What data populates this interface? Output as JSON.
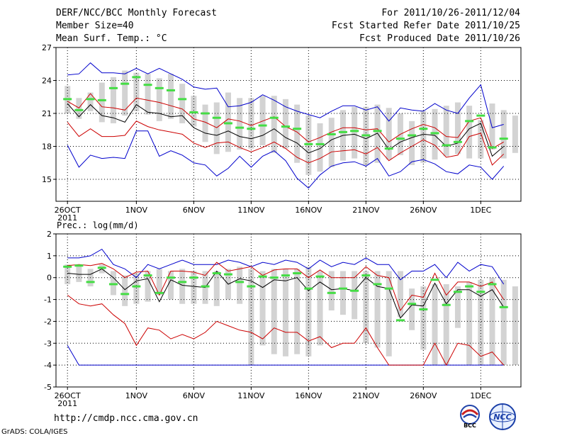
{
  "header": {
    "title": "DERF/NCC/BCC Monthly Forecast",
    "member_size": "Member Size=40",
    "variable_label": "Mean Surf. Temp.: °C",
    "forecast_range": "For 2011/10/26-2011/12/04",
    "started_date": "Fcst Started Refer Date 2011/10/25",
    "produced_date": "Fcst Produced Date 2011/10/26"
  },
  "footer": {
    "url": "http://cmdp.ncc.cma.gov.cn",
    "grads_credit": "GrADS: COLA/IGES",
    "logo_bcc": "BCC",
    "logo_ncc": "NCC"
  },
  "colors": {
    "box": "#d3d3d3",
    "median": "#44dd44",
    "mean": "#000000",
    "sd": "#cc0000",
    "range": "#0000cc",
    "grid": "#000000"
  },
  "chart_data": [
    {
      "type": "box-ensemble",
      "title": "Mean Surf. Temp.: °C",
      "ylabel": "°C",
      "ylim": [
        13,
        27
      ],
      "yticks": [
        15,
        18,
        21,
        24,
        27
      ],
      "x_days": 40,
      "xticks": [
        {
          "day": 1,
          "label": "26OCT",
          "sub": "2011"
        },
        {
          "day": 7,
          "label": "1NOV"
        },
        {
          "day": 12,
          "label": "6NOV"
        },
        {
          "day": 17,
          "label": "11NOV"
        },
        {
          "day": 22,
          "label": "16NOV"
        },
        {
          "day": 27,
          "label": "21NOV"
        },
        {
          "day": 32,
          "label": "26NOV"
        },
        {
          "day": 37,
          "label": "1DEC"
        }
      ],
      "box_low": [
        21.0,
        20.5,
        21.2,
        20.2,
        20.1,
        20.8,
        21.2,
        20.9,
        20.3,
        20.5,
        20.1,
        19.8,
        18.4,
        17.3,
        17.5,
        17.7,
        17.8,
        18.1,
        17.4,
        17.8,
        16.5,
        15.4,
        15.7,
        16.1,
        16.7,
        16.9,
        16.3,
        16.5,
        16.8,
        17.2,
        16.3,
        16.5,
        16.8,
        17.1,
        17.3,
        16.9,
        16.9,
        17.7,
        16.9,
        17.4
      ],
      "box_high": [
        23.5,
        22.4,
        22.9,
        23.8,
        24.3,
        24.9,
        24.7,
        24.6,
        24.2,
        24.6,
        23.7,
        22.6,
        21.8,
        22.0,
        22.9,
        22.4,
        22.4,
        22.6,
        22.6,
        22.3,
        21.8,
        20.8,
        20.1,
        20.6,
        21.3,
        21.6,
        21.6,
        21.8,
        21.5,
        21.0,
        20.3,
        21.2,
        21.4,
        21.7,
        22.0,
        21.7,
        20.4,
        21.9,
        21.3,
        20.8
      ],
      "median": [
        22.3,
        21.3,
        22.3,
        22.2,
        23.3,
        23.7,
        24.3,
        23.6,
        23.3,
        23.1,
        22.3,
        21.1,
        21.0,
        20.6,
        20.1,
        19.7,
        19.6,
        19.9,
        20.6,
        19.8,
        19.6,
        18.2,
        18.2,
        19.1,
        19.3,
        19.4,
        19.0,
        19.4,
        17.8,
        18.7,
        19.0,
        19.6,
        19.2,
        18.1,
        18.4,
        20.3,
        20.8,
        17.9,
        18.7,
        null
      ],
      "mean": [
        21.9,
        20.7,
        21.8,
        20.8,
        20.6,
        20.2,
        21.8,
        21.1,
        21.0,
        20.7,
        20.8,
        19.7,
        19.2,
        19.0,
        19.4,
        18.9,
        18.7,
        19.0,
        19.6,
        18.8,
        18.3,
        17.4,
        17.8,
        18.6,
        19.0,
        19.1,
        18.7,
        19.2,
        17.7,
        18.4,
        18.8,
        19.1,
        19.0,
        18.0,
        18.3,
        19.6,
        20.1,
        17.1,
        18.0,
        null
      ],
      "sd_upper": [
        22.1,
        21.5,
        22.8,
        21.6,
        21.5,
        21.3,
        22.4,
        22.2,
        22.0,
        21.7,
        21.4,
        20.5,
        20.2,
        19.7,
        20.5,
        20.3,
        19.9,
        20.3,
        20.7,
        19.8,
        19.3,
        18.4,
        18.8,
        19.3,
        19.7,
        19.7,
        19.5,
        19.6,
        18.4,
        19.1,
        19.6,
        20.0,
        19.7,
        18.9,
        18.8,
        20.3,
        20.6,
        17.8,
        18.4,
        null
      ],
      "sd_lower": [
        20.2,
        18.9,
        19.6,
        18.9,
        18.9,
        19.0,
        20.3,
        19.8,
        19.5,
        19.3,
        19.1,
        18.3,
        17.9,
        18.3,
        18.4,
        17.9,
        17.5,
        17.9,
        18.4,
        17.8,
        17.0,
        16.5,
        16.9,
        17.5,
        17.6,
        17.7,
        17.3,
        17.9,
        16.7,
        17.4,
        18.0,
        18.6,
        18.1,
        17.0,
        17.2,
        18.9,
        19.2,
        16.3,
        17.3,
        null
      ],
      "max": [
        24.5,
        24.6,
        25.6,
        24.7,
        24.7,
        24.6,
        25.1,
        24.6,
        25.1,
        24.6,
        24.1,
        23.4,
        23.2,
        23.3,
        21.6,
        21.7,
        22.0,
        22.7,
        22.2,
        21.6,
        21.2,
        20.9,
        20.6,
        21.2,
        21.7,
        21.7,
        21.3,
        21.6,
        20.3,
        21.5,
        21.3,
        21.2,
        21.9,
        21.3,
        21.0,
        22.4,
        23.6,
        19.7,
        20.0,
        null
      ],
      "min": [
        18.1,
        16.1,
        17.2,
        16.9,
        17.0,
        16.9,
        19.4,
        19.4,
        17.1,
        17.6,
        17.2,
        16.5,
        16.3,
        15.3,
        16.0,
        17.1,
        16.1,
        17.1,
        17.6,
        16.7,
        15.1,
        14.2,
        15.4,
        16.2,
        16.5,
        16.6,
        16.2,
        16.9,
        15.3,
        15.7,
        16.6,
        16.8,
        16.4,
        15.7,
        15.5,
        16.3,
        16.1,
        15.0,
        16.2,
        null
      ]
    },
    {
      "type": "box-ensemble",
      "title": "Prec.: log(mm/d)",
      "ylabel": "log(mm/d)",
      "ylim": [
        -5,
        2
      ],
      "yticks": [
        -5,
        -4,
        -3,
        -2,
        -1,
        0,
        1,
        2
      ],
      "x_days": 40,
      "xticks": [
        {
          "day": 1,
          "label": "26OCT",
          "sub": "2011"
        },
        {
          "day": 7,
          "label": "1NOV"
        },
        {
          "day": 12,
          "label": "6NOV"
        },
        {
          "day": 17,
          "label": "11NOV"
        },
        {
          "day": 22,
          "label": "16NOV"
        },
        {
          "day": 27,
          "label": "21NOV"
        },
        {
          "day": 32,
          "label": "26NOV"
        },
        {
          "day": 37,
          "label": "1DEC"
        }
      ],
      "box_low": [
        -0.3,
        -0.2,
        -0.4,
        0.2,
        -0.8,
        -1.3,
        -1.2,
        -1.1,
        -0.8,
        -1.0,
        -1.2,
        -1.2,
        -1.2,
        -1.3,
        -1.0,
        -1.2,
        -4.0,
        -3.1,
        -3.5,
        -3.6,
        -3.5,
        -3.6,
        -3.1,
        -1.5,
        -1.7,
        -1.9,
        -3.0,
        -3.2,
        -3.6,
        -1.8,
        -2.4,
        -3.3,
        -4.0,
        -4.0,
        -2.3,
        -4.0,
        -4.0,
        -4.0,
        -4.0,
        -4.0
      ],
      "box_high": [
        0.6,
        0.6,
        0.4,
        0.6,
        0.3,
        0.1,
        0.2,
        0.3,
        0.4,
        0.3,
        0.4,
        0.3,
        0.3,
        0.3,
        0.4,
        0.5,
        0.4,
        0.3,
        0.4,
        0.4,
        0.4,
        0.5,
        0.3,
        0.3,
        0.3,
        0.3,
        0.3,
        0.3,
        0.3,
        0.3,
        -0.5,
        -0.4,
        -0.3,
        -0.3,
        -0.4,
        -0.2,
        -0.1,
        0.0,
        -0.1,
        -0.4
      ],
      "median": [
        0.5,
        0.55,
        -0.2,
        0.45,
        -0.3,
        -0.75,
        -0.4,
        0.1,
        -0.7,
        0.0,
        -0.2,
        0.0,
        -0.4,
        0.2,
        0.15,
        -0.2,
        -0.4,
        0.05,
        0.0,
        0.1,
        0.2,
        -0.5,
        0.05,
        -0.7,
        -0.5,
        -0.6,
        0.1,
        -0.3,
        -0.5,
        -1.95,
        -1.2,
        -1.45,
        -0.1,
        -1.25,
        -0.65,
        -0.4,
        -0.65,
        -0.3,
        -1.35,
        null
      ],
      "mean": [
        0.2,
        0.15,
        0.15,
        0.4,
        0.0,
        -0.55,
        -0.15,
        -0.05,
        -1.1,
        -0.1,
        -0.35,
        -0.4,
        -0.45,
        0.3,
        -0.3,
        -0.05,
        -0.15,
        -0.45,
        -0.1,
        -0.15,
        0.0,
        -0.6,
        -0.2,
        -0.55,
        -0.5,
        -0.6,
        0.0,
        -0.4,
        -0.5,
        -1.85,
        -1.25,
        -1.3,
        -0.25,
        -1.2,
        -0.55,
        -0.55,
        -0.85,
        -0.55,
        -1.35,
        null
      ],
      "sd_upper": [
        0.55,
        0.6,
        0.55,
        0.65,
        0.4,
        0.0,
        0.25,
        0.3,
        -0.8,
        0.3,
        0.3,
        0.25,
        0.1,
        0.7,
        0.3,
        0.4,
        0.5,
        0.1,
        0.35,
        0.4,
        0.4,
        0.0,
        0.35,
        0.0,
        0.0,
        0.0,
        0.5,
        0.1,
        0.0,
        -1.5,
        -0.8,
        -0.9,
        0.2,
        -0.8,
        -0.2,
        -0.2,
        -0.4,
        -0.2,
        -1.0,
        null
      ],
      "sd_lower": [
        -0.8,
        -1.2,
        -1.3,
        -1.2,
        -1.7,
        -2.1,
        -3.1,
        -2.3,
        -2.4,
        -2.8,
        -2.6,
        -2.8,
        -2.5,
        -2.0,
        -2.2,
        -2.4,
        -2.5,
        -2.8,
        -2.3,
        -2.5,
        -2.5,
        -2.9,
        -2.7,
        -3.2,
        -3.0,
        -3.0,
        -2.3,
        -3.2,
        -4.0,
        -4.0,
        -4.0,
        -4.0,
        -3.0,
        -4.0,
        -3.0,
        -3.1,
        -3.6,
        -3.4,
        -4.0,
        null
      ],
      "max": [
        0.9,
        0.9,
        1.0,
        1.3,
        0.6,
        0.4,
        0.0,
        0.6,
        0.4,
        0.6,
        0.8,
        0.6,
        0.6,
        0.6,
        0.8,
        0.7,
        0.5,
        0.7,
        0.6,
        0.8,
        0.7,
        0.4,
        0.8,
        0.5,
        0.7,
        0.6,
        0.9,
        0.6,
        0.6,
        -0.1,
        0.3,
        0.3,
        0.6,
        0.0,
        0.7,
        0.3,
        0.6,
        0.5,
        -0.3,
        null
      ],
      "min": [
        -3.1,
        -4.0,
        -4.0,
        -4.0,
        -4.0,
        -4.0,
        -4.0,
        -4.0,
        -4.0,
        -4.0,
        -4.0,
        -4.0,
        -4.0,
        -4.0,
        -4.0,
        -4.0,
        -4.0,
        -4.0,
        -4.0,
        -4.0,
        -4.0,
        -4.0,
        -4.0,
        -4.0,
        -4.0,
        -4.0,
        -4.0,
        -4.0,
        -4.0,
        -4.0,
        -4.0,
        -4.0,
        -4.0,
        -4.0,
        -4.0,
        -4.0,
        -4.0,
        -4.0,
        -4.0,
        null
      ]
    }
  ]
}
